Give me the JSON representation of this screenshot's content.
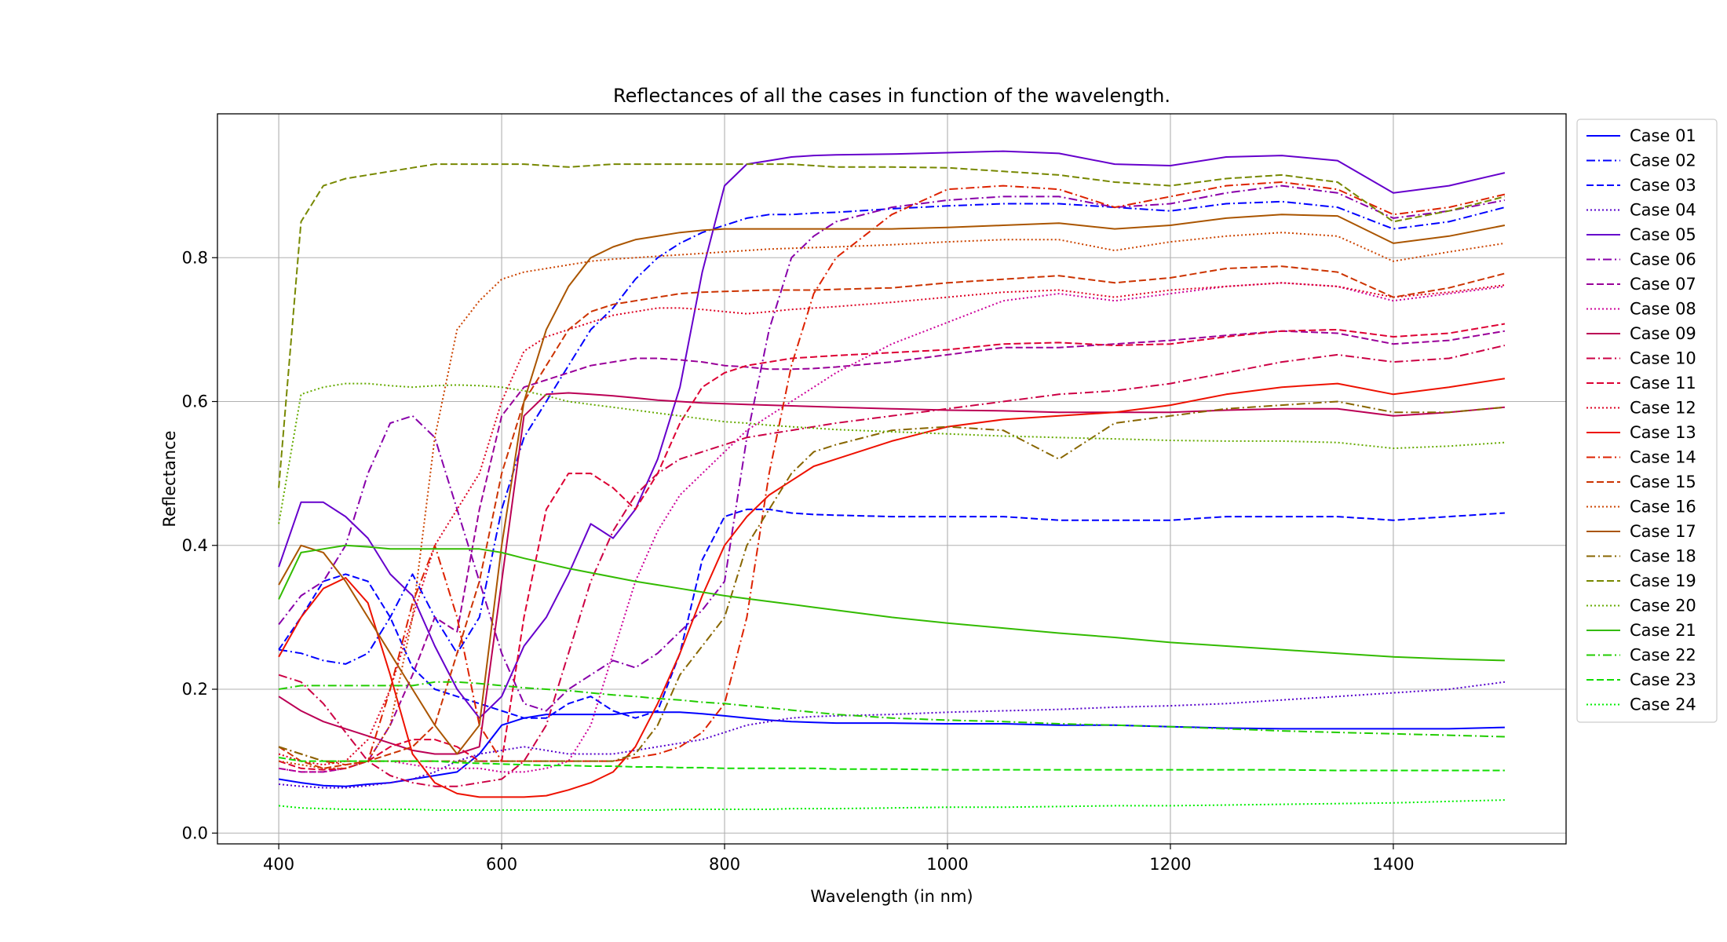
{
  "chart_data": {
    "type": "line",
    "title": "Reflectances of all the cases in function of the wavelength.",
    "xlabel": "Wavelength (in nm)",
    "ylabel": "Reflectance",
    "xlim": [
      345,
      1555
    ],
    "ylim": [
      -0.015,
      1.0
    ],
    "xticks": [
      400,
      600,
      800,
      1000,
      1200,
      1400
    ],
    "xtick_labels": [
      "400",
      "600",
      "800",
      "1000",
      "1200",
      "1400"
    ],
    "yticks": [
      0.0,
      0.2,
      0.4,
      0.6,
      0.8
    ],
    "ytick_labels": [
      "0.0",
      "0.2",
      "0.4",
      "0.6",
      "0.8"
    ],
    "grid": true,
    "legend_position": "outside-right",
    "x": [
      400,
      420,
      440,
      460,
      480,
      500,
      520,
      540,
      560,
      580,
      600,
      620,
      640,
      660,
      680,
      700,
      720,
      740,
      760,
      780,
      800,
      820,
      840,
      860,
      880,
      900,
      950,
      1000,
      1050,
      1100,
      1150,
      1200,
      1250,
      1300,
      1350,
      1400,
      1450,
      1500
    ],
    "series": [
      {
        "name": "Case 01",
        "color": "#0000ff",
        "dash": "solid",
        "values": [
          0.075,
          0.07,
          0.066,
          0.065,
          0.068,
          0.07,
          0.075,
          0.08,
          0.085,
          0.11,
          0.15,
          0.16,
          0.165,
          0.165,
          0.165,
          0.165,
          0.168,
          0.168,
          0.168,
          0.166,
          0.163,
          0.16,
          0.157,
          0.155,
          0.154,
          0.153,
          0.153,
          0.152,
          0.152,
          0.15,
          0.15,
          0.148,
          0.146,
          0.145,
          0.145,
          0.145,
          0.145,
          0.147
        ]
      },
      {
        "name": "Case 02",
        "color": "#0000ff",
        "dash": "dashdot",
        "values": [
          0.255,
          0.25,
          0.24,
          0.235,
          0.25,
          0.3,
          0.36,
          0.3,
          0.25,
          0.3,
          0.45,
          0.55,
          0.6,
          0.65,
          0.7,
          0.73,
          0.77,
          0.8,
          0.82,
          0.835,
          0.845,
          0.855,
          0.86,
          0.86,
          0.862,
          0.863,
          0.868,
          0.872,
          0.875,
          0.875,
          0.87,
          0.865,
          0.875,
          0.878,
          0.87,
          0.84,
          0.85,
          0.87
        ]
      },
      {
        "name": "Case 03",
        "color": "#0000ff",
        "dash": "dashed",
        "values": [
          0.255,
          0.3,
          0.35,
          0.36,
          0.35,
          0.3,
          0.23,
          0.2,
          0.19,
          0.18,
          0.17,
          0.16,
          0.16,
          0.18,
          0.19,
          0.17,
          0.16,
          0.17,
          0.25,
          0.38,
          0.44,
          0.45,
          0.45,
          0.445,
          0.443,
          0.442,
          0.44,
          0.44,
          0.44,
          0.435,
          0.435,
          0.435,
          0.44,
          0.44,
          0.44,
          0.435,
          0.44,
          0.445
        ]
      },
      {
        "name": "Case 04",
        "color": "#5500cc",
        "dash": "dotted",
        "values": [
          0.068,
          0.065,
          0.063,
          0.063,
          0.066,
          0.07,
          0.075,
          0.085,
          0.1,
          0.11,
          0.115,
          0.12,
          0.115,
          0.11,
          0.11,
          0.11,
          0.115,
          0.12,
          0.125,
          0.13,
          0.14,
          0.15,
          0.155,
          0.16,
          0.162,
          0.163,
          0.165,
          0.168,
          0.17,
          0.172,
          0.175,
          0.177,
          0.18,
          0.185,
          0.19,
          0.195,
          0.2,
          0.21
        ]
      },
      {
        "name": "Case 05",
        "color": "#6600cc",
        "dash": "solid",
        "values": [
          0.37,
          0.46,
          0.46,
          0.44,
          0.41,
          0.36,
          0.33,
          0.26,
          0.2,
          0.16,
          0.19,
          0.26,
          0.3,
          0.36,
          0.43,
          0.41,
          0.45,
          0.52,
          0.62,
          0.78,
          0.9,
          0.93,
          0.935,
          0.94,
          0.942,
          0.943,
          0.944,
          0.946,
          0.948,
          0.945,
          0.93,
          0.928,
          0.94,
          0.942,
          0.935,
          0.89,
          0.9,
          0.918
        ]
      },
      {
        "name": "Case 06",
        "color": "#8800aa",
        "dash": "dashdot",
        "values": [
          0.29,
          0.33,
          0.35,
          0.4,
          0.5,
          0.57,
          0.58,
          0.55,
          0.45,
          0.35,
          0.25,
          0.18,
          0.17,
          0.2,
          0.22,
          0.24,
          0.23,
          0.25,
          0.28,
          0.31,
          0.35,
          0.55,
          0.7,
          0.8,
          0.83,
          0.85,
          0.87,
          0.88,
          0.885,
          0.885,
          0.87,
          0.875,
          0.89,
          0.9,
          0.89,
          0.855,
          0.865,
          0.88
        ]
      },
      {
        "name": "Case 07",
        "color": "#990099",
        "dash": "dashed",
        "values": [
          0.09,
          0.085,
          0.085,
          0.09,
          0.1,
          0.15,
          0.22,
          0.3,
          0.28,
          0.45,
          0.58,
          0.62,
          0.63,
          0.64,
          0.65,
          0.655,
          0.66,
          0.66,
          0.658,
          0.655,
          0.65,
          0.648,
          0.645,
          0.645,
          0.646,
          0.648,
          0.655,
          0.665,
          0.675,
          0.675,
          0.68,
          0.685,
          0.692,
          0.698,
          0.695,
          0.68,
          0.685,
          0.698
        ]
      },
      {
        "name": "Case 08",
        "color": "#cc0099",
        "dash": "dotted",
        "values": [
          0.09,
          0.085,
          0.085,
          0.09,
          0.1,
          0.1,
          0.095,
          0.09,
          0.09,
          0.09,
          0.085,
          0.085,
          0.09,
          0.1,
          0.15,
          0.25,
          0.35,
          0.42,
          0.47,
          0.5,
          0.53,
          0.56,
          0.58,
          0.6,
          0.62,
          0.64,
          0.68,
          0.71,
          0.74,
          0.75,
          0.74,
          0.75,
          0.76,
          0.765,
          0.76,
          0.74,
          0.75,
          0.76
        ]
      },
      {
        "name": "Case 09",
        "color": "#bb0055",
        "dash": "solid",
        "values": [
          0.19,
          0.17,
          0.155,
          0.145,
          0.135,
          0.125,
          0.115,
          0.11,
          0.11,
          0.12,
          0.35,
          0.58,
          0.61,
          0.612,
          0.61,
          0.608,
          0.605,
          0.602,
          0.6,
          0.598,
          0.597,
          0.596,
          0.595,
          0.594,
          0.593,
          0.592,
          0.59,
          0.588,
          0.587,
          0.585,
          0.585,
          0.585,
          0.588,
          0.59,
          0.59,
          0.58,
          0.585,
          0.592
        ]
      },
      {
        "name": "Case 10",
        "color": "#cc0044",
        "dash": "dashdot",
        "values": [
          0.22,
          0.21,
          0.18,
          0.14,
          0.1,
          0.08,
          0.07,
          0.065,
          0.065,
          0.07,
          0.075,
          0.1,
          0.15,
          0.25,
          0.35,
          0.42,
          0.47,
          0.5,
          0.52,
          0.53,
          0.54,
          0.55,
          0.555,
          0.56,
          0.565,
          0.57,
          0.58,
          0.59,
          0.6,
          0.61,
          0.615,
          0.625,
          0.64,
          0.655,
          0.665,
          0.655,
          0.66,
          0.678
        ]
      },
      {
        "name": "Case 11",
        "color": "#dd0033",
        "dash": "dashed",
        "values": [
          0.1,
          0.09,
          0.088,
          0.09,
          0.1,
          0.12,
          0.13,
          0.13,
          0.12,
          0.1,
          0.1,
          0.3,
          0.45,
          0.5,
          0.5,
          0.48,
          0.45,
          0.5,
          0.57,
          0.62,
          0.64,
          0.65,
          0.655,
          0.66,
          0.662,
          0.664,
          0.668,
          0.672,
          0.68,
          0.682,
          0.678,
          0.68,
          0.69,
          0.698,
          0.7,
          0.69,
          0.695,
          0.708
        ]
      },
      {
        "name": "Case 12",
        "color": "#dd0022",
        "dash": "dotted",
        "values": [
          0.11,
          0.1,
          0.095,
          0.1,
          0.13,
          0.2,
          0.3,
          0.4,
          0.45,
          0.5,
          0.6,
          0.67,
          0.69,
          0.7,
          0.71,
          0.72,
          0.725,
          0.73,
          0.73,
          0.728,
          0.725,
          0.722,
          0.725,
          0.728,
          0.73,
          0.732,
          0.738,
          0.745,
          0.752,
          0.755,
          0.745,
          0.755,
          0.76,
          0.765,
          0.76,
          0.745,
          0.752,
          0.762
        ]
      },
      {
        "name": "Case 13",
        "color": "#ee1100",
        "dash": "solid",
        "values": [
          0.245,
          0.3,
          0.34,
          0.355,
          0.32,
          0.22,
          0.11,
          0.07,
          0.055,
          0.05,
          0.05,
          0.05,
          0.052,
          0.06,
          0.07,
          0.085,
          0.12,
          0.18,
          0.25,
          0.33,
          0.4,
          0.44,
          0.47,
          0.49,
          0.51,
          0.52,
          0.545,
          0.565,
          0.575,
          0.58,
          0.585,
          0.595,
          0.61,
          0.62,
          0.625,
          0.61,
          0.62,
          0.632
        ]
      },
      {
        "name": "Case 14",
        "color": "#dd2200",
        "dash": "dashdot",
        "values": [
          0.12,
          0.11,
          0.1,
          0.095,
          0.1,
          0.2,
          0.32,
          0.4,
          0.3,
          0.15,
          0.1,
          0.1,
          0.1,
          0.1,
          0.1,
          0.1,
          0.105,
          0.11,
          0.12,
          0.14,
          0.18,
          0.3,
          0.5,
          0.65,
          0.75,
          0.8,
          0.86,
          0.895,
          0.9,
          0.895,
          0.87,
          0.885,
          0.9,
          0.905,
          0.895,
          0.86,
          0.87,
          0.888
        ]
      },
      {
        "name": "Case 15",
        "color": "#cc3300",
        "dash": "dashed",
        "values": [
          0.12,
          0.1,
          0.09,
          0.095,
          0.1,
          0.11,
          0.12,
          0.15,
          0.25,
          0.35,
          0.5,
          0.6,
          0.65,
          0.7,
          0.725,
          0.735,
          0.74,
          0.745,
          0.75,
          0.752,
          0.753,
          0.754,
          0.755,
          0.755,
          0.755,
          0.756,
          0.758,
          0.765,
          0.77,
          0.775,
          0.765,
          0.772,
          0.785,
          0.788,
          0.78,
          0.745,
          0.758,
          0.778
        ]
      },
      {
        "name": "Case 16",
        "color": "#cc4400",
        "dash": "dotted",
        "values": [
          0.1,
          0.095,
          0.09,
          0.09,
          0.1,
          0.15,
          0.3,
          0.55,
          0.7,
          0.74,
          0.77,
          0.78,
          0.785,
          0.79,
          0.795,
          0.798,
          0.8,
          0.802,
          0.804,
          0.806,
          0.808,
          0.81,
          0.812,
          0.813,
          0.814,
          0.815,
          0.818,
          0.822,
          0.825,
          0.825,
          0.81,
          0.822,
          0.83,
          0.835,
          0.83,
          0.795,
          0.808,
          0.82
        ]
      },
      {
        "name": "Case 17",
        "color": "#aa5500",
        "dash": "solid",
        "values": [
          0.345,
          0.4,
          0.39,
          0.35,
          0.3,
          0.25,
          0.2,
          0.15,
          0.11,
          0.15,
          0.4,
          0.6,
          0.7,
          0.76,
          0.8,
          0.815,
          0.825,
          0.83,
          0.835,
          0.838,
          0.84,
          0.84,
          0.84,
          0.84,
          0.84,
          0.84,
          0.84,
          0.842,
          0.845,
          0.848,
          0.84,
          0.845,
          0.855,
          0.86,
          0.858,
          0.82,
          0.83,
          0.845
        ]
      },
      {
        "name": "Case 18",
        "color": "#886600",
        "dash": "dashdot",
        "values": [
          0.12,
          0.11,
          0.1,
          0.1,
          0.1,
          0.1,
          0.1,
          0.1,
          0.1,
          0.1,
          0.1,
          0.1,
          0.1,
          0.1,
          0.1,
          0.1,
          0.11,
          0.15,
          0.22,
          0.26,
          0.3,
          0.4,
          0.45,
          0.5,
          0.53,
          0.54,
          0.56,
          0.565,
          0.56,
          0.52,
          0.57,
          0.58,
          0.59,
          0.595,
          0.6,
          0.585,
          0.585,
          0.592
        ]
      },
      {
        "name": "Case 19",
        "color": "#778800",
        "dash": "dashed",
        "values": [
          0.48,
          0.85,
          0.9,
          0.91,
          0.915,
          0.92,
          0.925,
          0.93,
          0.93,
          0.93,
          0.93,
          0.93,
          0.928,
          0.926,
          0.928,
          0.93,
          0.93,
          0.93,
          0.93,
          0.93,
          0.93,
          0.93,
          0.93,
          0.93,
          0.928,
          0.926,
          0.926,
          0.925,
          0.92,
          0.915,
          0.905,
          0.9,
          0.91,
          0.915,
          0.905,
          0.85,
          0.865,
          0.885
        ]
      },
      {
        "name": "Case 20",
        "color": "#66aa00",
        "dash": "dotted",
        "values": [
          0.43,
          0.61,
          0.62,
          0.625,
          0.625,
          0.622,
          0.62,
          0.622,
          0.623,
          0.622,
          0.62,
          0.615,
          0.608,
          0.6,
          0.596,
          0.592,
          0.588,
          0.584,
          0.58,
          0.576,
          0.572,
          0.57,
          0.567,
          0.565,
          0.563,
          0.561,
          0.558,
          0.555,
          0.552,
          0.55,
          0.548,
          0.546,
          0.545,
          0.545,
          0.543,
          0.535,
          0.538,
          0.543
        ]
      },
      {
        "name": "Case 21",
        "color": "#33bb00",
        "dash": "solid",
        "values": [
          0.325,
          0.39,
          0.395,
          0.4,
          0.398,
          0.395,
          0.395,
          0.395,
          0.395,
          0.395,
          0.39,
          0.382,
          0.375,
          0.368,
          0.362,
          0.356,
          0.35,
          0.345,
          0.34,
          0.335,
          0.33,
          0.326,
          0.322,
          0.318,
          0.314,
          0.31,
          0.3,
          0.292,
          0.285,
          0.278,
          0.272,
          0.265,
          0.26,
          0.255,
          0.25,
          0.245,
          0.242,
          0.24
        ]
      },
      {
        "name": "Case 22",
        "color": "#22cc00",
        "dash": "dashdot",
        "values": [
          0.2,
          0.205,
          0.205,
          0.205,
          0.205,
          0.205,
          0.205,
          0.21,
          0.21,
          0.208,
          0.205,
          0.202,
          0.2,
          0.198,
          0.195,
          0.192,
          0.19,
          0.187,
          0.185,
          0.182,
          0.18,
          0.177,
          0.174,
          0.171,
          0.168,
          0.165,
          0.16,
          0.157,
          0.155,
          0.152,
          0.15,
          0.148,
          0.145,
          0.142,
          0.14,
          0.138,
          0.136,
          0.134
        ]
      },
      {
        "name": "Case 23",
        "color": "#11dd00",
        "dash": "dashed",
        "values": [
          0.105,
          0.1,
          0.1,
          0.1,
          0.1,
          0.1,
          0.1,
          0.1,
          0.098,
          0.097,
          0.096,
          0.095,
          0.094,
          0.094,
          0.093,
          0.093,
          0.092,
          0.092,
          0.091,
          0.091,
          0.09,
          0.09,
          0.09,
          0.09,
          0.09,
          0.089,
          0.089,
          0.088,
          0.088,
          0.088,
          0.088,
          0.088,
          0.088,
          0.088,
          0.087,
          0.087,
          0.087,
          0.087
        ]
      },
      {
        "name": "Case 24",
        "color": "#00ee00",
        "dash": "dotted",
        "values": [
          0.038,
          0.035,
          0.034,
          0.033,
          0.033,
          0.033,
          0.033,
          0.032,
          0.032,
          0.032,
          0.032,
          0.032,
          0.032,
          0.032,
          0.032,
          0.032,
          0.032,
          0.032,
          0.033,
          0.033,
          0.033,
          0.033,
          0.033,
          0.034,
          0.034,
          0.034,
          0.035,
          0.036,
          0.036,
          0.037,
          0.038,
          0.038,
          0.039,
          0.04,
          0.041,
          0.042,
          0.044,
          0.046
        ]
      }
    ]
  }
}
